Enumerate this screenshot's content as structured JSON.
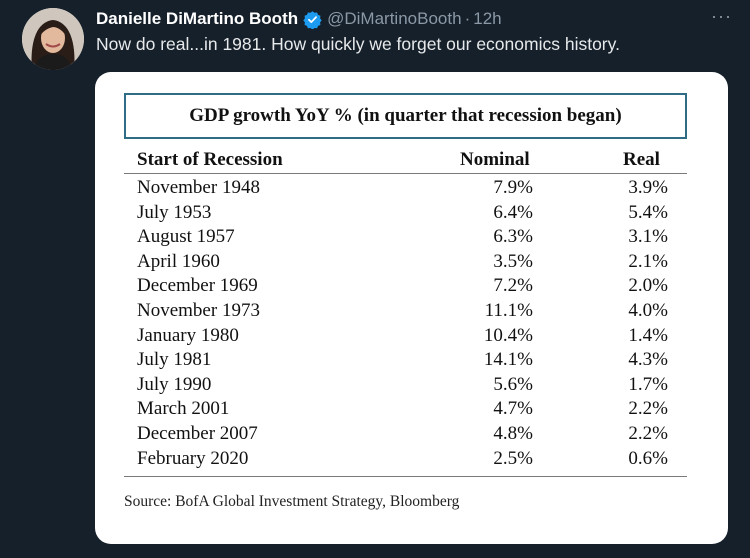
{
  "tweet": {
    "display_name": "Danielle DiMartino Booth",
    "handle": "@DiMartinoBooth",
    "separator": "·",
    "time": "12h",
    "more": "···",
    "text": "Now do real...in 1981. How quickly we forget our economics history.",
    "colors": {
      "background": "#15202b",
      "name": "#ffffff",
      "muted": "#8b98a5",
      "verified": "#1d9bf0"
    }
  },
  "icons": {
    "avatar": "avatar-photo",
    "verified": "verified-badge-icon",
    "more": "more-options-icon"
  },
  "table": {
    "title": "GDP growth YoY %  (in quarter that recession began)",
    "headers": {
      "start": "Start of Recession",
      "nominal": "Nominal",
      "real": "Real"
    },
    "rows": [
      {
        "start": "November 1948",
        "nominal": "7.9%",
        "real": "3.9%"
      },
      {
        "start": "July 1953",
        "nominal": "6.4%",
        "real": "5.4%"
      },
      {
        "start": "August 1957",
        "nominal": "6.3%",
        "real": "3.1%"
      },
      {
        "start": "April 1960",
        "nominal": "3.5%",
        "real": "2.1%"
      },
      {
        "start": "December 1969",
        "nominal": "7.2%",
        "real": "2.0%"
      },
      {
        "start": "November 1973",
        "nominal": "11.1%",
        "real": "4.0%"
      },
      {
        "start": "January 1980",
        "nominal": "10.4%",
        "real": "1.4%"
      },
      {
        "start": "July 1981",
        "nominal": "14.1%",
        "real": "4.3%"
      },
      {
        "start": "July 1990",
        "nominal": "5.6%",
        "real": "1.7%"
      },
      {
        "start": "March 2001",
        "nominal": "4.7%",
        "real": "2.2%"
      },
      {
        "start": "December 2007",
        "nominal": "4.8%",
        "real": "2.2%"
      },
      {
        "start": "February 2020",
        "nominal": "2.5%",
        "real": "0.6%"
      }
    ],
    "source": "Source: BofA Global Investment Strategy, Bloomberg",
    "colors": {
      "title_border": "#2f6d86"
    }
  }
}
